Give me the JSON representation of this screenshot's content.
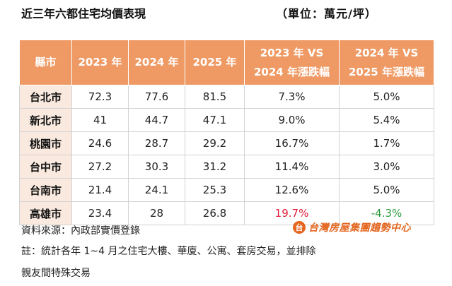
{
  "title": "近三年六都住宅均價表現",
  "unit": "（單位：萬元/坪）",
  "table": {
    "headers": [
      "縣市",
      "2023 年",
      "2024 年",
      "2025 年",
      "2023 年 VS",
      "2024 年 VS"
    ],
    "headers_line2": [
      "",
      "",
      "",
      "",
      "2024 年漲跌幅",
      "2025 年漲跌幅"
    ],
    "rows": [
      {
        "city": "台北市",
        "y2023": "72.3",
        "y2024": "77.6",
        "y2025": "81.5",
        "chg1": "7.3%",
        "chg2": "5.0%"
      },
      {
        "city": "新北市",
        "y2023": "41",
        "y2024": "44.7",
        "y2025": "47.1",
        "chg1": "9.0%",
        "chg2": "5.4%"
      },
      {
        "city": "桃園市",
        "y2023": "24.6",
        "y2024": "28.7",
        "y2025": "29.2",
        "chg1": "16.7%",
        "chg2": "1.7%"
      },
      {
        "city": "台中市",
        "y2023": "27.2",
        "y2024": "30.3",
        "y2025": "31.2",
        "chg1": "11.4%",
        "chg2": "3.0%"
      },
      {
        "city": "台南市",
        "y2023": "21.4",
        "y2024": "24.1",
        "y2025": "25.3",
        "chg1": "12.6%",
        "chg2": "5.0%"
      },
      {
        "city": "高雄市",
        "y2023": "23.4",
        "y2024": "28",
        "y2025": "26.8",
        "chg1": "19.7%",
        "chg2": "-4.3%"
      }
    ]
  },
  "colors": {
    "header_bg": "#ef9a64",
    "city_bg": "#f9e9df",
    "up": "#e0203a",
    "down": "#2c9a3c",
    "brand": "#e4661f"
  },
  "source": "資料來源：內政部實價登錄",
  "logo": {
    "mark": "台",
    "text": "台灣房屋集團趨勢中心"
  },
  "note_line1": "註：統計各年 1~4 月之住宅大樓、華廈、公寓、套房交易，並排除",
  "note_line2": "親友間特殊交易"
}
